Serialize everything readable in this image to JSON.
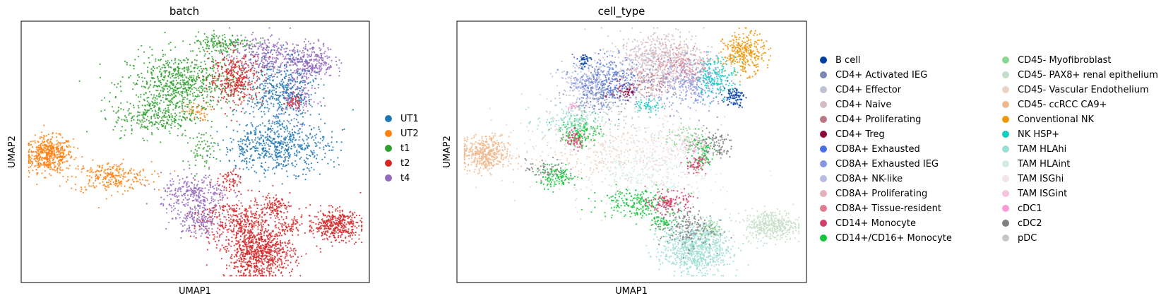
{
  "chart_data": [
    {
      "type": "scatter",
      "title": "batch",
      "xlabel": "UMAP1",
      "ylabel": "UMAP2",
      "grid": false,
      "ticks": false,
      "legend_position": "right",
      "legend": [
        {
          "label": "UT1",
          "color": "#1f77b4"
        },
        {
          "label": "UT2",
          "color": "#ff7f0e"
        },
        {
          "label": "t1",
          "color": "#2ca02c"
        },
        {
          "label": "t2",
          "color": "#d62728"
        },
        {
          "label": "t4",
          "color": "#9467bd"
        }
      ],
      "clusters": [
        {
          "series": "UT2",
          "x": 0.07,
          "y": 0.49,
          "sx": 0.035,
          "sy": 0.035,
          "n": 500
        },
        {
          "series": "UT2",
          "x": 0.25,
          "y": 0.4,
          "sx": 0.06,
          "sy": 0.03,
          "n": 260
        },
        {
          "series": "UT2",
          "x": 0.5,
          "y": 0.66,
          "sx": 0.02,
          "sy": 0.018,
          "n": 50
        },
        {
          "series": "t1",
          "x": 0.46,
          "y": 0.77,
          "sx": 0.08,
          "sy": 0.06,
          "n": 700
        },
        {
          "series": "t1",
          "x": 0.38,
          "y": 0.64,
          "sx": 0.06,
          "sy": 0.04,
          "n": 280
        },
        {
          "series": "t1",
          "x": 0.58,
          "y": 0.93,
          "sx": 0.05,
          "sy": 0.02,
          "n": 160
        },
        {
          "series": "t1",
          "x": 0.52,
          "y": 0.51,
          "sx": 0.02,
          "sy": 0.035,
          "n": 60
        },
        {
          "series": "t4",
          "x": 0.7,
          "y": 0.88,
          "sx": 0.05,
          "sy": 0.04,
          "n": 280
        },
        {
          "series": "t4",
          "x": 0.84,
          "y": 0.86,
          "sx": 0.035,
          "sy": 0.035,
          "n": 280
        },
        {
          "series": "t4",
          "x": 0.5,
          "y": 0.33,
          "sx": 0.05,
          "sy": 0.04,
          "n": 300
        },
        {
          "series": "t4",
          "x": 0.51,
          "y": 0.23,
          "sx": 0.035,
          "sy": 0.03,
          "n": 180
        },
        {
          "series": "t4",
          "x": 0.8,
          "y": 0.72,
          "sx": 0.03,
          "sy": 0.05,
          "n": 160
        },
        {
          "series": "UT1",
          "x": 0.75,
          "y": 0.73,
          "sx": 0.05,
          "sy": 0.07,
          "n": 420
        },
        {
          "series": "UT1",
          "x": 0.74,
          "y": 0.52,
          "sx": 0.08,
          "sy": 0.05,
          "n": 600
        },
        {
          "series": "t2",
          "x": 0.62,
          "y": 0.79,
          "sx": 0.04,
          "sy": 0.05,
          "n": 360
        },
        {
          "series": "t2",
          "x": 0.69,
          "y": 0.1,
          "sx": 0.05,
          "sy": 0.05,
          "n": 800
        },
        {
          "series": "t2",
          "x": 0.64,
          "y": 0.23,
          "sx": 0.06,
          "sy": 0.05,
          "n": 400
        },
        {
          "series": "t2",
          "x": 0.91,
          "y": 0.21,
          "sx": 0.04,
          "sy": 0.03,
          "n": 400
        },
        {
          "series": "t2",
          "x": 0.6,
          "y": 0.39,
          "sx": 0.015,
          "sy": 0.02,
          "n": 60
        },
        {
          "series": "t2",
          "x": 0.74,
          "y": 0.29,
          "sx": 0.02,
          "sy": 0.02,
          "n": 80
        },
        {
          "series": "t2",
          "x": 0.78,
          "y": 0.21,
          "sx": 0.015,
          "sy": 0.015,
          "n": 40
        },
        {
          "series": "t2",
          "x": 0.79,
          "y": 0.7,
          "sx": 0.01,
          "sy": 0.015,
          "n": 40
        }
      ]
    },
    {
      "type": "scatter",
      "title": "cell_type",
      "xlabel": "UMAP1",
      "ylabel": "UMAP2",
      "grid": false,
      "ticks": false,
      "legend_position": "right",
      "legend": [
        {
          "label": "B cell",
          "color": "#023fa5"
        },
        {
          "label": "CD4+ Activated IEG",
          "color": "#7d87b9"
        },
        {
          "label": "CD4+ Effector",
          "color": "#bec1d4"
        },
        {
          "label": "CD4+ Naive",
          "color": "#d6bcc0"
        },
        {
          "label": "CD4+ Proliferating",
          "color": "#bb7784"
        },
        {
          "label": "CD4+ Treg",
          "color": "#8e063b"
        },
        {
          "label": "CD8A+ Exhausted",
          "color": "#4a6fe3"
        },
        {
          "label": "CD8A+ Exhausted IEG",
          "color": "#8595e1"
        },
        {
          "label": "CD8A+ NK-like",
          "color": "#b5bbe3"
        },
        {
          "label": "CD8A+ Proliferating",
          "color": "#e6afb9"
        },
        {
          "label": "CD8A+ Tissue-resident",
          "color": "#e07b91"
        },
        {
          "label": "CD14+ Monocyte",
          "color": "#d33f6a"
        },
        {
          "label": "CD14+/CD16+ Monocyte",
          "color": "#11c638"
        },
        {
          "label": "CD45- Myofibroblast",
          "color": "#8dd593"
        },
        {
          "label": "CD45- PAX8+ renal epithelium",
          "color": "#c6dec7"
        },
        {
          "label": "CD45- Vascular Endothelium",
          "color": "#ead3c6"
        },
        {
          "label": "CD45- ccRCC CA9+",
          "color": "#f0b98d"
        },
        {
          "label": "Conventional NK",
          "color": "#ef9708"
        },
        {
          "label": "NK HSP+",
          "color": "#0fcfc0"
        },
        {
          "label": "TAM HLAhi",
          "color": "#9cded6"
        },
        {
          "label": "TAM HLAint",
          "color": "#d5eae7"
        },
        {
          "label": "TAM ISGhi",
          "color": "#f3e1eb"
        },
        {
          "label": "TAM ISGint",
          "color": "#f6c4e1"
        },
        {
          "label": "cDC1",
          "color": "#f79cd4"
        },
        {
          "label": "cDC2",
          "color": "#7f7f7f"
        },
        {
          "label": "pDC",
          "color": "#c7c7c7"
        }
      ],
      "clusters": [
        {
          "series": "CD45- ccRCC CA9+",
          "x": 0.07,
          "y": 0.49,
          "sx": 0.035,
          "sy": 0.035,
          "n": 450
        },
        {
          "series": "CD4+ Naive",
          "x": 0.6,
          "y": 0.88,
          "sx": 0.07,
          "sy": 0.05,
          "n": 450
        },
        {
          "series": "CD4+ Effector",
          "x": 0.55,
          "y": 0.83,
          "sx": 0.07,
          "sy": 0.05,
          "n": 250
        },
        {
          "series": "CD8A+ Exhausted",
          "x": 0.43,
          "y": 0.78,
          "sx": 0.05,
          "sy": 0.05,
          "n": 300
        },
        {
          "series": "CD8A+ Exhausted IEG",
          "x": 0.68,
          "y": 0.76,
          "sx": 0.05,
          "sy": 0.05,
          "n": 300
        },
        {
          "series": "CD4+ Activated IEG",
          "x": 0.4,
          "y": 0.74,
          "sx": 0.04,
          "sy": 0.04,
          "n": 160
        },
        {
          "series": "CD8A+ NK-like",
          "x": 0.36,
          "y": 0.78,
          "sx": 0.04,
          "sy": 0.04,
          "n": 160
        },
        {
          "series": "CD4+ Proliferating",
          "x": 0.55,
          "y": 0.77,
          "sx": 0.03,
          "sy": 0.03,
          "n": 80
        },
        {
          "series": "CD4+ Treg",
          "x": 0.48,
          "y": 0.74,
          "sx": 0.02,
          "sy": 0.02,
          "n": 50
        },
        {
          "series": "Conventional NK",
          "x": 0.83,
          "y": 0.89,
          "sx": 0.03,
          "sy": 0.04,
          "n": 320
        },
        {
          "series": "NK HSP+",
          "x": 0.75,
          "y": 0.8,
          "sx": 0.03,
          "sy": 0.04,
          "n": 180
        },
        {
          "series": "NK HSP+",
          "x": 0.55,
          "y": 0.68,
          "sx": 0.02,
          "sy": 0.015,
          "n": 50
        },
        {
          "series": "B cell",
          "x": 0.8,
          "y": 0.72,
          "sx": 0.015,
          "sy": 0.02,
          "n": 90
        },
        {
          "series": "B cell",
          "x": 0.36,
          "y": 0.86,
          "sx": 0.01,
          "sy": 0.015,
          "n": 40
        },
        {
          "series": "CD45- Vascular Endothelium",
          "x": 0.4,
          "y": 0.5,
          "sx": 0.15,
          "sy": 0.08,
          "n": 450
        },
        {
          "series": "CD45- Myofibroblast",
          "x": 0.65,
          "y": 0.55,
          "sx": 0.03,
          "sy": 0.03,
          "n": 60
        },
        {
          "series": "TAM ISGhi",
          "x": 0.6,
          "y": 0.5,
          "sx": 0.05,
          "sy": 0.05,
          "n": 150
        },
        {
          "series": "TAM HLAint",
          "x": 0.55,
          "y": 0.4,
          "sx": 0.1,
          "sy": 0.07,
          "n": 300
        },
        {
          "series": "CD14+/CD16+ Monocyte",
          "x": 0.35,
          "y": 0.58,
          "sx": 0.03,
          "sy": 0.03,
          "n": 150
        },
        {
          "series": "CD14+/CD16+ Monocyte",
          "x": 0.28,
          "y": 0.4,
          "sx": 0.03,
          "sy": 0.02,
          "n": 120
        },
        {
          "series": "CD14+/CD16+ Monocyte",
          "x": 0.51,
          "y": 0.3,
          "sx": 0.05,
          "sy": 0.03,
          "n": 200
        },
        {
          "series": "CD14+/CD16+ Monocyte",
          "x": 0.7,
          "y": 0.5,
          "sx": 0.02,
          "sy": 0.04,
          "n": 100
        },
        {
          "series": "CD14+/CD16+ Monocyte",
          "x": 0.6,
          "y": 0.22,
          "sx": 0.02,
          "sy": 0.02,
          "n": 60
        },
        {
          "series": "CD14+ Monocyte",
          "x": 0.61,
          "y": 0.3,
          "sx": 0.03,
          "sy": 0.02,
          "n": 140
        },
        {
          "series": "CD14+ Monocyte",
          "x": 0.33,
          "y": 0.55,
          "sx": 0.015,
          "sy": 0.02,
          "n": 60
        },
        {
          "series": "CD14+ Monocyte",
          "x": 0.69,
          "y": 0.45,
          "sx": 0.015,
          "sy": 0.02,
          "n": 60
        },
        {
          "series": "TAM HLAhi",
          "x": 0.69,
          "y": 0.12,
          "sx": 0.05,
          "sy": 0.05,
          "n": 800
        },
        {
          "series": "TAM HLAhi",
          "x": 0.32,
          "y": 0.62,
          "sx": 0.05,
          "sy": 0.03,
          "n": 150
        },
        {
          "series": "CD45- PAX8+ renal epithelium",
          "x": 0.91,
          "y": 0.21,
          "sx": 0.04,
          "sy": 0.03,
          "n": 400
        },
        {
          "series": "cDC2",
          "x": 0.66,
          "y": 0.2,
          "sx": 0.04,
          "sy": 0.04,
          "n": 180
        },
        {
          "series": "cDC2",
          "x": 0.74,
          "y": 0.53,
          "sx": 0.03,
          "sy": 0.03,
          "n": 100
        },
        {
          "series": "cDC2",
          "x": 0.25,
          "y": 0.43,
          "sx": 0.03,
          "sy": 0.02,
          "n": 60
        },
        {
          "series": "pDC",
          "x": 0.47,
          "y": 0.7,
          "sx": 0.1,
          "sy": 0.08,
          "n": 120
        },
        {
          "series": "CD8A+ Proliferating",
          "x": 0.58,
          "y": 0.82,
          "sx": 0.06,
          "sy": 0.05,
          "n": 120
        },
        {
          "series": "CD8A+ Tissue-resident",
          "x": 0.65,
          "y": 0.84,
          "sx": 0.04,
          "sy": 0.04,
          "n": 100
        },
        {
          "series": "TAM ISGint",
          "x": 0.68,
          "y": 0.52,
          "sx": 0.02,
          "sy": 0.02,
          "n": 60
        },
        {
          "series": "cDC1",
          "x": 0.33,
          "y": 0.68,
          "sx": 0.01,
          "sy": 0.01,
          "n": 20
        },
        {
          "series": "CD45- Myofibroblast",
          "x": 0.74,
          "y": 0.19,
          "sx": 0.02,
          "sy": 0.015,
          "n": 50
        }
      ]
    }
  ]
}
